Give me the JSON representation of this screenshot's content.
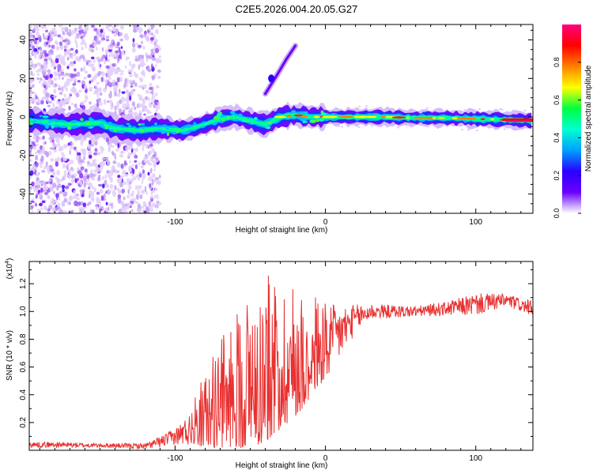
{
  "title": "C2E5.2026.004.20.05.G27",
  "chart_data": [
    {
      "type": "heatmap",
      "name": "spectrogram",
      "xlabel": "Height of straight line (km)",
      "ylabel": "Frequency (Hz)",
      "xlim": [
        -197,
        138
      ],
      "ylim": [
        -50,
        48
      ],
      "xticks": [
        -100,
        0,
        100
      ],
      "xtick_labels": [
        "-100",
        "0",
        "100"
      ],
      "yticks": [
        -40,
        -20,
        0,
        20,
        40
      ],
      "ytick_labels": [
        "-40",
        "-20",
        "0",
        "20",
        "40"
      ],
      "ridge": {
        "x": [
          -195,
          -170,
          -150,
          -140,
          -125,
          -110,
          -95,
          -85,
          -70,
          -60,
          -50,
          -40,
          -30,
          -20,
          -10,
          0,
          20,
          40,
          60,
          80,
          100,
          120,
          138
        ],
        "freq": [
          -2,
          -4,
          -3,
          -6,
          -7,
          -6,
          -7,
          -5,
          -1,
          0,
          -2,
          -4,
          0,
          1,
          0,
          0,
          0,
          0,
          -0.5,
          -0.5,
          -1,
          -1.5,
          -2
        ]
      },
      "branch": {
        "x": [
          -40,
          -36,
          -32,
          -26,
          -20
        ],
        "freq": [
          12,
          17,
          22,
          30,
          37
        ]
      },
      "colorbar": {
        "label": "Normalized spectral amplitude",
        "range": [
          0,
          1
        ],
        "ticks": [
          0.0,
          0.2,
          0.4,
          0.6,
          0.8
        ],
        "tick_labels": [
          "0.0",
          "0.2",
          "0.4",
          "0.6",
          "0.8"
        ],
        "colormap": [
          "#ffffff",
          "#6a00ff",
          "#2b00ff",
          "#00a0ff",
          "#00ffd0",
          "#00ff40",
          "#ffff00",
          "#ff8000",
          "#ff0000",
          "#ff0080"
        ]
      }
    },
    {
      "type": "line",
      "name": "snr",
      "xlabel": "Height of straight line (km)",
      "ylabel": "SNR (10 * v/v)",
      "scale_label": "(x10",
      "scale_exp": "4",
      "xlim": [
        -197,
        138
      ],
      "ylim": [
        0,
        1.36
      ],
      "xticks": [
        -100,
        0,
        100
      ],
      "xtick_labels": [
        "-100",
        "0",
        "100"
      ],
      "yticks": [
        0.2,
        0.4,
        0.6,
        0.8,
        1.0,
        1.2
      ],
      "ytick_labels": [
        "0.2",
        "0.4",
        "0.6",
        "0.8",
        "1.0",
        "1.2"
      ],
      "color": "#e83030",
      "envelope": {
        "x": [
          -197,
          -180,
          -150,
          -120,
          -110,
          -100,
          -90,
          -80,
          -70,
          -60,
          -50,
          -40,
          -30,
          -20,
          -10,
          0,
          10,
          20,
          30,
          40,
          60,
          80,
          100,
          120,
          138
        ],
        "base": [
          0.04,
          0.04,
          0.035,
          0.03,
          0.06,
          0.1,
          0.15,
          0.22,
          0.3,
          0.38,
          0.45,
          0.5,
          0.55,
          0.6,
          0.65,
          0.75,
          0.85,
          0.95,
          1.0,
          1.0,
          1.0,
          1.02,
          1.05,
          1.08,
          1.02
        ],
        "spread": [
          0.02,
          0.02,
          0.015,
          0.02,
          0.04,
          0.06,
          0.12,
          0.25,
          0.35,
          0.45,
          0.55,
          0.55,
          0.5,
          0.45,
          0.35,
          0.3,
          0.2,
          0.1,
          0.06,
          0.05,
          0.04,
          0.05,
          0.08,
          0.05,
          0.05
        ]
      }
    }
  ]
}
